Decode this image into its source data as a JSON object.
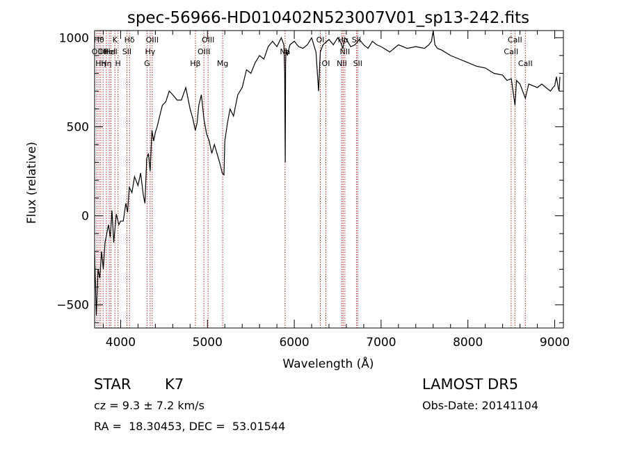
{
  "chart_data": {
    "type": "line",
    "title": "spec-56966-HD010402N523007V01_sp13-242.fits",
    "xlabel": "Wavelength (Å)",
    "ylabel": "Flux (relative)",
    "xlim": [
      3700,
      9100
    ],
    "ylim": [
      -630,
      1040
    ],
    "xticks": [
      4000,
      5000,
      6000,
      7000,
      8000,
      9000
    ],
    "yticks": [
      -500,
      0,
      500,
      1000
    ],
    "grid": false,
    "series": [
      {
        "x": [
          3700,
          3720,
          3740,
          3760,
          3780,
          3800,
          3820,
          3840,
          3860,
          3880,
          3900,
          3920,
          3950,
          3980,
          4000,
          4030,
          4060,
          4080,
          4100,
          4130,
          4160,
          4200,
          4230,
          4260,
          4280,
          4300,
          4320,
          4340,
          4360,
          4380,
          4400,
          4420,
          4450,
          4480,
          4520,
          4560,
          4600,
          4650,
          4700,
          4750,
          4800,
          4830,
          4860,
          4880,
          4900,
          4930,
          4960,
          4990,
          5020,
          5050,
          5080,
          5110,
          5140,
          5170,
          5190,
          5200,
          5230,
          5260,
          5300,
          5350,
          5400,
          5450,
          5500,
          5550,
          5600,
          5650,
          5700,
          5750,
          5800,
          5850,
          5880,
          5890,
          5896,
          5900,
          5905,
          5920,
          5950,
          6000,
          6050,
          6100,
          6150,
          6200,
          6250,
          6280,
          6300,
          6330,
          6400,
          6450,
          6500,
          6530,
          6560,
          6580,
          6600,
          6650,
          6700,
          6750,
          6800,
          6850,
          6900,
          6950,
          7000,
          7100,
          7200,
          7300,
          7400,
          7500,
          7550,
          7580,
          7600,
          7620,
          7650,
          7700,
          7800,
          7900,
          8000,
          8100,
          8200,
          8300,
          8400,
          8450,
          8500,
          8542,
          8560,
          8600,
          8662,
          8700,
          8750,
          8800,
          8850,
          8900,
          8950,
          8980,
          9000,
          9020,
          9040,
          9050,
          9060
        ],
        "values": [
          -200,
          -560,
          -300,
          -350,
          -200,
          -300,
          -150,
          -100,
          -50,
          -120,
          30,
          -150,
          10,
          -50,
          -30,
          -30,
          70,
          20,
          160,
          130,
          220,
          170,
          240,
          120,
          70,
          320,
          350,
          250,
          480,
          420,
          470,
          500,
          560,
          620,
          640,
          700,
          680,
          650,
          650,
          720,
          600,
          550,
          480,
          520,
          620,
          680,
          540,
          460,
          420,
          350,
          400,
          350,
          300,
          240,
          230,
          420,
          520,
          600,
          560,
          680,
          720,
          820,
          800,
          860,
          900,
          880,
          950,
          980,
          950,
          1000,
          960,
          800,
          300,
          850,
          940,
          900,
          960,
          980,
          950,
          940,
          960,
          1000,
          920,
          700,
          920,
          960,
          990,
          960,
          1000,
          980,
          940,
          1000,
          990,
          950,
          960,
          990,
          960,
          940,
          980,
          960,
          950,
          920,
          960,
          940,
          950,
          940,
          960,
          980,
          1040,
          960,
          940,
          930,
          900,
          880,
          860,
          840,
          830,
          800,
          790,
          760,
          770,
          620,
          760,
          740,
          660,
          740,
          730,
          720,
          740,
          720,
          700,
          720,
          730,
          780,
          720,
          700,
          780
        ]
      }
    ],
    "lines": [
      {
        "x": 3727,
        "label": "OII",
        "row": 2
      },
      {
        "x": 3750,
        "label": "Hθ",
        "row": 1
      },
      {
        "x": 3771,
        "label": "Hη",
        "row": 3
      },
      {
        "x": 3798,
        "label": "OII",
        "row": 2
      },
      {
        "x": 3835,
        "label": "Hη",
        "row": 3
      },
      {
        "x": 3869,
        "label": "HeI",
        "row": 2
      },
      {
        "x": 3889,
        "label": "HeI",
        "row": 2
      },
      {
        "x": 3934,
        "label": "K",
        "row": 1
      },
      {
        "x": 3970,
        "label": "H",
        "row": 3
      },
      {
        "x": 4072,
        "label": "SII",
        "row": 2
      },
      {
        "x": 4102,
        "label": "Hδ",
        "row": 1
      },
      {
        "x": 4304,
        "label": "G",
        "row": 3
      },
      {
        "x": 4340,
        "label": "Hγ",
        "row": 2
      },
      {
        "x": 4364,
        "label": "OIII",
        "row": 1
      },
      {
        "x": 4861,
        "label": "Hβ",
        "row": 3
      },
      {
        "x": 4959,
        "label": "OIII",
        "row": 2
      },
      {
        "x": 5007,
        "label": "OIII",
        "row": 1
      },
      {
        "x": 5175,
        "label": "Mg",
        "row": 3
      },
      {
        "x": 5894,
        "label": "Na",
        "row": 2
      },
      {
        "x": 6300,
        "label": "OI",
        "row": 1
      },
      {
        "x": 6364,
        "label": "OI",
        "row": 3
      },
      {
        "x": 6548,
        "label": "NII",
        "row": 3
      },
      {
        "x": 6563,
        "label": "Hα",
        "row": 1
      },
      {
        "x": 6583,
        "label": "NII",
        "row": 2
      },
      {
        "x": 6716,
        "label": "SII",
        "row": 1
      },
      {
        "x": 6731,
        "label": "SII",
        "row": 3
      },
      {
        "x": 8498,
        "label": "CaII",
        "row": 2
      },
      {
        "x": 8542,
        "label": "CaII",
        "row": 1
      },
      {
        "x": 8662,
        "label": "CaII",
        "row": 3
      }
    ]
  },
  "footer": {
    "object_type": "STAR",
    "subclass": "K7",
    "survey": "LAMOST DR5",
    "redshift": "cz = 9.3 ± 7.2 km/s",
    "obs_date": "Obs-Date: 20141104",
    "coords": "RA =  18.30453, DEC =  53.01544"
  }
}
